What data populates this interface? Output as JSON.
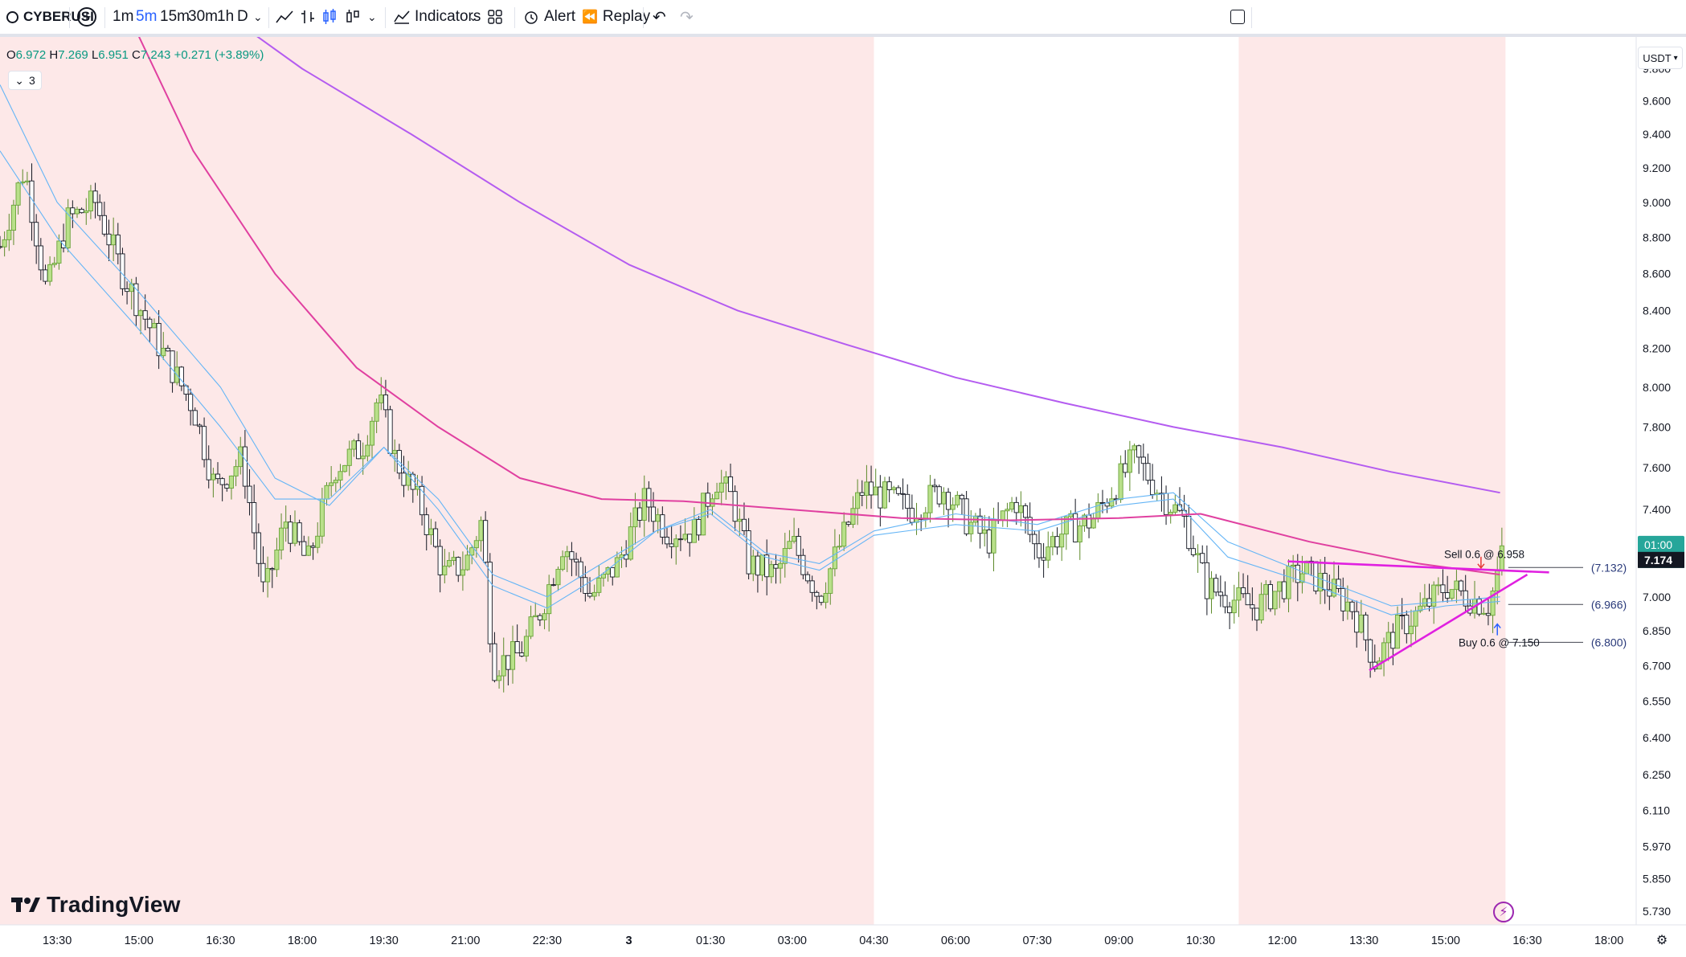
{
  "toolbar": {
    "symbol": "CYBERUSI",
    "intervals": [
      "1m",
      "5m",
      "15m",
      "30m",
      "1h",
      "D"
    ],
    "active_interval": "5m",
    "indicators_label": "Indicators",
    "alert_label": "Alert",
    "replay_label": "Replay"
  },
  "legend": {
    "o_label": "O",
    "o": "6.972",
    "h_label": "H",
    "h": "7.269",
    "l_label": "L",
    "l": "6.951",
    "c_label": "C",
    "c": "7.243",
    "change": "+0.271 (+3.89%)",
    "collapsed_count": "3"
  },
  "currency": "USDT",
  "logo_text": "TradingView",
  "colors": {
    "up": "#8bc34a",
    "down": "#131722",
    "session_shade": "#fde8e8",
    "ema_fast": "#64b5f6",
    "ema_mid": "#e040a0",
    "ema_slow": "#b45cf0",
    "trendline": "#e020e0",
    "price_label_bg": "#26a69a",
    "accent": "#2962ff"
  },
  "chart_data": {
    "type": "candlestick",
    "y_axis": {
      "scale": "log",
      "ticks": [
        9.8,
        9.6,
        9.4,
        9.2,
        9.0,
        8.8,
        8.6,
        8.4,
        8.2,
        8.0,
        7.8,
        7.6,
        7.4,
        7.2,
        7.0,
        6.85,
        6.7,
        6.55,
        6.4,
        6.25,
        6.11,
        5.97,
        5.85,
        5.73
      ],
      "tick_labels": [
        "9.800",
        "9.600",
        "9.400",
        "9.200",
        "9.000",
        "8.800",
        "8.600",
        "8.400",
        "8.200",
        "8.000",
        "7.800",
        "7.600",
        "7.400",
        "7.200",
        "7.000",
        "6.850",
        "6.700",
        "6.550",
        "6.400",
        "6.250",
        "6.110",
        "5.970",
        "5.850",
        "5.730"
      ],
      "range": [
        5.68,
        10.0
      ]
    },
    "x_axis": {
      "tick_labels": [
        "13:30",
        "15:00",
        "16:30",
        "18:00",
        "19:30",
        "21:00",
        "22:30",
        "3",
        "01:30",
        "03:00",
        "04:30",
        "06:00",
        "07:30",
        "09:00",
        "10:30",
        "12:00",
        "13:30",
        "15:00",
        "16:30",
        "18:00"
      ],
      "tick_hours": [
        13.5,
        15,
        16.5,
        18,
        19.5,
        21,
        22.5,
        24,
        25.5,
        27,
        28.5,
        30,
        31.5,
        33,
        34.5,
        36,
        37.5,
        39,
        40.5,
        42
      ],
      "range_hours": [
        12.45,
        42.5
      ]
    },
    "session_shading": [
      {
        "from_hour": 12.45,
        "to_hour": 28.5
      },
      {
        "from_hour": 35.2,
        "to_hour": 40.1
      }
    ],
    "price_path": [
      {
        "hour": 12.45,
        "price": 8.75
      },
      {
        "hour": 12.9,
        "price": 9.2
      },
      {
        "hour": 13.3,
        "price": 8.5
      },
      {
        "hour": 13.7,
        "price": 8.9
      },
      {
        "hour": 14.2,
        "price": 9.0
      },
      {
        "hour": 14.7,
        "price": 8.6
      },
      {
        "hour": 15.4,
        "price": 8.2
      },
      {
        "hour": 16.0,
        "price": 7.9
      },
      {
        "hour": 16.4,
        "price": 7.5
      },
      {
        "hour": 16.9,
        "price": 7.65
      },
      {
        "hour": 17.3,
        "price": 7.0
      },
      {
        "hour": 17.7,
        "price": 7.35
      },
      {
        "hour": 18.1,
        "price": 7.15
      },
      {
        "hour": 18.6,
        "price": 7.6
      },
      {
        "hour": 19.1,
        "price": 7.7
      },
      {
        "hour": 19.4,
        "price": 7.95
      },
      {
        "hour": 19.7,
        "price": 7.65
      },
      {
        "hour": 20.2,
        "price": 7.4
      },
      {
        "hour": 20.6,
        "price": 7.1
      },
      {
        "hour": 21.0,
        "price": 7.15
      },
      {
        "hour": 21.3,
        "price": 7.35
      },
      {
        "hour": 21.5,
        "price": 6.7
      },
      {
        "hour": 22.0,
        "price": 6.75
      },
      {
        "hour": 22.4,
        "price": 6.95
      },
      {
        "hour": 22.8,
        "price": 7.25
      },
      {
        "hour": 23.3,
        "price": 7.0
      },
      {
        "hour": 23.8,
        "price": 7.15
      },
      {
        "hour": 24.3,
        "price": 7.45
      },
      {
        "hour": 24.7,
        "price": 7.3
      },
      {
        "hour": 25.2,
        "price": 7.3
      },
      {
        "hour": 25.6,
        "price": 7.55
      },
      {
        "hour": 25.9,
        "price": 7.45
      },
      {
        "hour": 26.2,
        "price": 7.15
      },
      {
        "hour": 26.7,
        "price": 7.1
      },
      {
        "hour": 27.0,
        "price": 7.25
      },
      {
        "hour": 27.5,
        "price": 7.0
      },
      {
        "hour": 27.9,
        "price": 7.25
      },
      {
        "hour": 28.3,
        "price": 7.5
      },
      {
        "hour": 28.8,
        "price": 7.45
      },
      {
        "hour": 29.2,
        "price": 7.4
      },
      {
        "hour": 29.8,
        "price": 7.5
      },
      {
        "hour": 30.2,
        "price": 7.35
      },
      {
        "hour": 30.6,
        "price": 7.25
      },
      {
        "hour": 31.1,
        "price": 7.45
      },
      {
        "hour": 31.5,
        "price": 7.2
      },
      {
        "hour": 32.0,
        "price": 7.3
      },
      {
        "hour": 32.5,
        "price": 7.35
      },
      {
        "hour": 32.9,
        "price": 7.5
      },
      {
        "hour": 33.3,
        "price": 7.65
      },
      {
        "hour": 33.7,
        "price": 7.5
      },
      {
        "hour": 34.2,
        "price": 7.35
      },
      {
        "hour": 34.6,
        "price": 7.05
      },
      {
        "hour": 35.0,
        "price": 7.0
      },
      {
        "hour": 35.5,
        "price": 6.95
      },
      {
        "hour": 36.0,
        "price": 7.05
      },
      {
        "hour": 36.4,
        "price": 7.12
      },
      {
        "hour": 36.8,
        "price": 7.05
      },
      {
        "hour": 37.3,
        "price": 6.95
      },
      {
        "hour": 37.7,
        "price": 6.72
      },
      {
        "hour": 38.1,
        "price": 6.85
      },
      {
        "hour": 38.6,
        "price": 6.95
      },
      {
        "hour": 39.0,
        "price": 7.05
      },
      {
        "hour": 39.4,
        "price": 7.0
      },
      {
        "hour": 39.8,
        "price": 6.96
      },
      {
        "hour": 40.05,
        "price": 7.2
      }
    ],
    "ema_slow": [
      {
        "hour": 16.0,
        "price": 10.3
      },
      {
        "hour": 18.0,
        "price": 9.8
      },
      {
        "hour": 20.0,
        "price": 9.4
      },
      {
        "hour": 22.0,
        "price": 9.0
      },
      {
        "hour": 24.0,
        "price": 8.65
      },
      {
        "hour": 26.0,
        "price": 8.4
      },
      {
        "hour": 28.0,
        "price": 8.22
      },
      {
        "hour": 30.0,
        "price": 8.05
      },
      {
        "hour": 32.0,
        "price": 7.92
      },
      {
        "hour": 34.0,
        "price": 7.8
      },
      {
        "hour": 36.0,
        "price": 7.7
      },
      {
        "hour": 38.0,
        "price": 7.58
      },
      {
        "hour": 40.0,
        "price": 7.48
      }
    ],
    "ema_mid": [
      {
        "hour": 14.6,
        "price": 10.3
      },
      {
        "hour": 16.0,
        "price": 9.3
      },
      {
        "hour": 17.5,
        "price": 8.6
      },
      {
        "hour": 19.0,
        "price": 8.1
      },
      {
        "hour": 20.5,
        "price": 7.8
      },
      {
        "hour": 22.0,
        "price": 7.55
      },
      {
        "hour": 23.5,
        "price": 7.45
      },
      {
        "hour": 25.0,
        "price": 7.44
      },
      {
        "hour": 27.0,
        "price": 7.4
      },
      {
        "hour": 29.0,
        "price": 7.36
      },
      {
        "hour": 31.0,
        "price": 7.35
      },
      {
        "hour": 33.0,
        "price": 7.36
      },
      {
        "hour": 34.5,
        "price": 7.38
      },
      {
        "hour": 36.5,
        "price": 7.25
      },
      {
        "hour": 38.5,
        "price": 7.15
      },
      {
        "hour": 40.0,
        "price": 7.1
      }
    ],
    "ema_fast": [
      {
        "hour": 12.45,
        "price": 9.7
      },
      {
        "hour": 13.5,
        "price": 9.0
      },
      {
        "hour": 15.0,
        "price": 8.5
      },
      {
        "hour": 16.5,
        "price": 8.0
      },
      {
        "hour": 17.5,
        "price": 7.55
      },
      {
        "hour": 18.5,
        "price": 7.42
      },
      {
        "hour": 19.5,
        "price": 7.7
      },
      {
        "hour": 20.5,
        "price": 7.45
      },
      {
        "hour": 21.5,
        "price": 7.1
      },
      {
        "hour": 22.5,
        "price": 7.0
      },
      {
        "hour": 23.5,
        "price": 7.15
      },
      {
        "hour": 24.5,
        "price": 7.3
      },
      {
        "hour": 25.5,
        "price": 7.4
      },
      {
        "hour": 26.5,
        "price": 7.2
      },
      {
        "hour": 27.5,
        "price": 7.15
      },
      {
        "hour": 28.5,
        "price": 7.3
      },
      {
        "hour": 30.0,
        "price": 7.38
      },
      {
        "hour": 31.5,
        "price": 7.33
      },
      {
        "hour": 33.0,
        "price": 7.45
      },
      {
        "hour": 34.0,
        "price": 7.48
      },
      {
        "hour": 35.0,
        "price": 7.25
      },
      {
        "hour": 36.5,
        "price": 7.1
      },
      {
        "hour": 38.0,
        "price": 6.96
      },
      {
        "hour": 39.0,
        "price": 6.98
      },
      {
        "hour": 40.0,
        "price": 7.0
      }
    ],
    "ema_fast2": [
      {
        "hour": 12.45,
        "price": 9.3
      },
      {
        "hour": 13.5,
        "price": 8.8
      },
      {
        "hour": 15.0,
        "price": 8.3
      },
      {
        "hour": 16.5,
        "price": 7.8
      },
      {
        "hour": 17.5,
        "price": 7.45
      },
      {
        "hour": 18.5,
        "price": 7.45
      },
      {
        "hour": 19.5,
        "price": 7.7
      },
      {
        "hour": 20.5,
        "price": 7.4
      },
      {
        "hour": 21.5,
        "price": 7.05
      },
      {
        "hour": 22.5,
        "price": 6.95
      },
      {
        "hour": 23.5,
        "price": 7.1
      },
      {
        "hour": 24.5,
        "price": 7.3
      },
      {
        "hour": 25.5,
        "price": 7.38
      },
      {
        "hour": 26.5,
        "price": 7.18
      },
      {
        "hour": 27.5,
        "price": 7.12
      },
      {
        "hour": 28.5,
        "price": 7.28
      },
      {
        "hour": 30.0,
        "price": 7.33
      },
      {
        "hour": 31.5,
        "price": 7.3
      },
      {
        "hour": 33.0,
        "price": 7.42
      },
      {
        "hour": 34.0,
        "price": 7.45
      },
      {
        "hour": 35.0,
        "price": 7.18
      },
      {
        "hour": 36.5,
        "price": 7.06
      },
      {
        "hour": 38.0,
        "price": 6.92
      },
      {
        "hour": 39.0,
        "price": 6.96
      },
      {
        "hour": 40.0,
        "price": 6.98
      }
    ],
    "trendlines": [
      {
        "from": {
          "hour": 36.1,
          "price": 7.16
        },
        "to": {
          "hour": 40.9,
          "price": 7.11
        }
      },
      {
        "from": {
          "hour": 37.6,
          "price": 6.68
        },
        "to": {
          "hour": 40.5,
          "price": 7.1
        }
      }
    ],
    "orders": [
      {
        "label": "Sell 0.6 @ 6.958",
        "price": 7.132,
        "price_label": "(7.132)",
        "side": "sell"
      },
      {
        "label": "Buy 0.6 @ 7.150",
        "price": 6.8,
        "price_label": "(6.800)",
        "side": "buy"
      },
      {
        "label": "",
        "price": 6.966,
        "price_label": "(6.966)",
        "side": "neutral"
      }
    ],
    "last_price": {
      "value": "7.174",
      "countdown": "01:00",
      "price": 7.174
    }
  }
}
